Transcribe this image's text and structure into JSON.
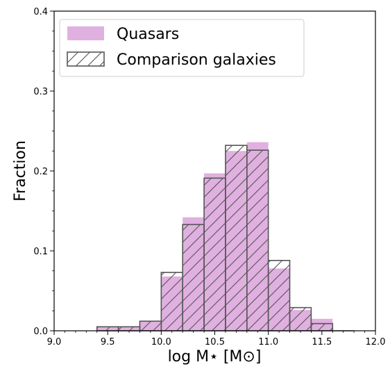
{
  "chart_data": {
    "type": "bar",
    "subtype": "histogram",
    "title": "",
    "xlabel": "log M⋆ [M⊙]",
    "ylabel": "Fraction",
    "xlim": [
      9.0,
      12.0
    ],
    "ylim": [
      0.0,
      0.4
    ],
    "xticks": [
      "9.0",
      "9.5",
      "10.0",
      "10.5",
      "11.0",
      "11.5",
      "12.0"
    ],
    "yticks": [
      "0.0",
      "0.1",
      "0.2",
      "0.3",
      "0.4"
    ],
    "grid": false,
    "legend_position": "upper-left",
    "bin_edges": [
      9.4,
      9.6,
      9.8,
      10.0,
      10.2,
      10.4,
      10.6,
      10.8,
      11.0,
      11.2,
      11.4,
      11.6,
      11.8
    ],
    "series": [
      {
        "name": "Quasars",
        "style": "filled",
        "color": "#e0b0e0",
        "values": [
          0.005,
          0.005,
          0.012,
          0.068,
          0.142,
          0.197,
          0.225,
          0.236,
          0.078,
          0.026,
          0.015,
          0.0
        ]
      },
      {
        "name": "Comparison galaxies",
        "style": "hatched",
        "color": "#555555",
        "values": [
          0.005,
          0.005,
          0.012,
          0.073,
          0.133,
          0.191,
          0.232,
          0.226,
          0.088,
          0.029,
          0.009,
          0.0
        ]
      }
    ]
  }
}
